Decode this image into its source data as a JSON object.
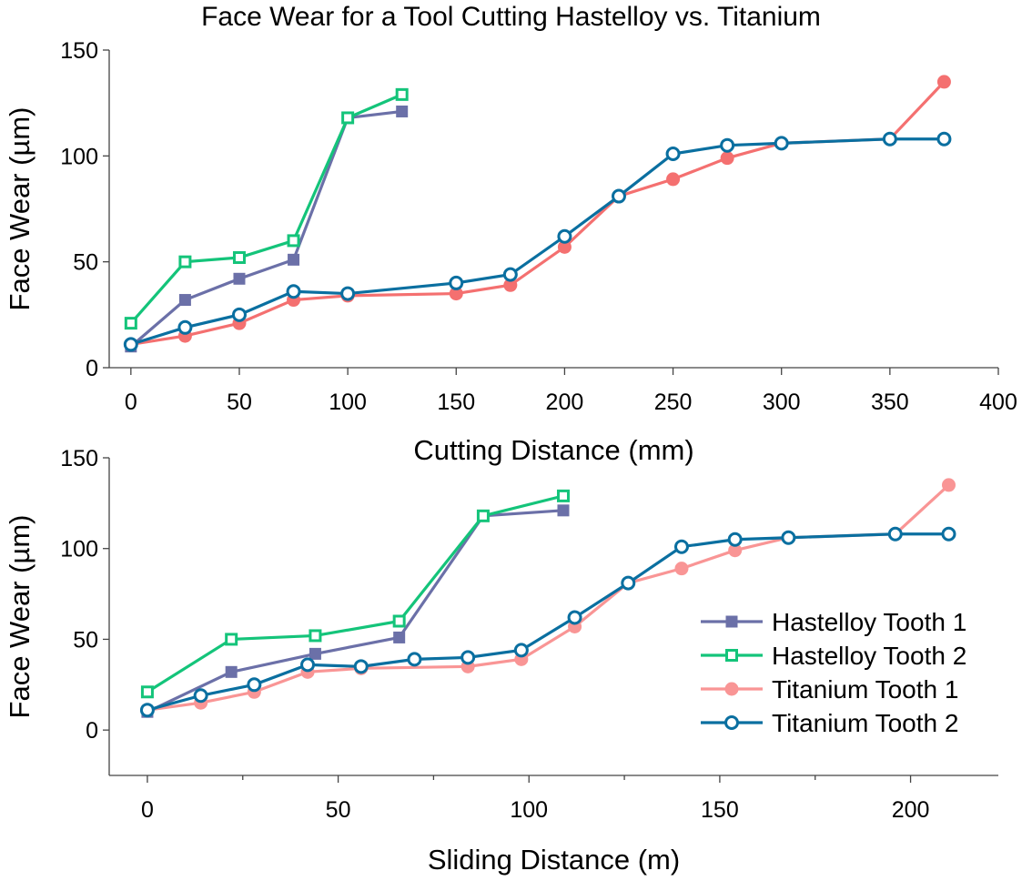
{
  "title": "Face Wear for a Tool Cutting Hastelloy vs. Titanium",
  "colors": {
    "hastelloy_tooth_1": "#6b70a8",
    "hastelloy_tooth_2": "#14c47a",
    "titanium_tooth_1_top": "#f47070",
    "titanium_tooth_1_bottom": "#f99595",
    "titanium_tooth_2": "#0a6fa0"
  },
  "chart_data": [
    {
      "type": "line",
      "xlabel": "Cutting Distance (mm)",
      "ylabel": "Face Wear (µm)",
      "xlim": [
        -10,
        400
      ],
      "ylim": [
        0,
        150
      ],
      "xticks": [
        0,
        50,
        100,
        150,
        200,
        250,
        300,
        350,
        400
      ],
      "yticks": [
        0,
        50,
        100,
        150
      ],
      "grid": false,
      "series": [
        {
          "name": "Hastelloy Tooth 1",
          "marker": "filled-square",
          "x": [
            0,
            25,
            50,
            75,
            100,
            125
          ],
          "y": [
            10,
            32,
            42,
            51,
            118,
            121
          ]
        },
        {
          "name": "Hastelloy Tooth 2",
          "marker": "open-square",
          "x": [
            0,
            25,
            50,
            75,
            100,
            125
          ],
          "y": [
            21,
            50,
            52,
            60,
            118,
            129
          ]
        },
        {
          "name": "Titanium Tooth 1",
          "marker": "filled-circle",
          "x": [
            0,
            25,
            50,
            75,
            100,
            150,
            175,
            200,
            225,
            250,
            275,
            300,
            350,
            375
          ],
          "y": [
            11,
            15,
            21,
            32,
            34,
            35,
            39,
            57,
            81,
            89,
            99,
            106,
            108,
            135
          ]
        },
        {
          "name": "Titanium Tooth 2",
          "marker": "open-circle",
          "x": [
            0,
            25,
            50,
            75,
            100,
            150,
            175,
            200,
            225,
            250,
            275,
            300,
            350,
            375
          ],
          "y": [
            11,
            19,
            25,
            36,
            35,
            40,
            44,
            62,
            81,
            101,
            105,
            106,
            108,
            108
          ]
        }
      ]
    },
    {
      "type": "line",
      "xlabel": "Sliding Distance (m)",
      "ylabel": "Face Wear (µm)",
      "xlim": [
        -10,
        223
      ],
      "ylim": [
        -25,
        150
      ],
      "xticks": [
        0,
        50,
        100,
        150,
        200
      ],
      "yticks": [
        0,
        50,
        100,
        150
      ],
      "grid": false,
      "legend": "center-right",
      "series": [
        {
          "name": "Hastelloy Tooth 1",
          "marker": "filled-square",
          "x": [
            0,
            22,
            44,
            66,
            88,
            109
          ],
          "y": [
            10,
            32,
            42,
            51,
            118,
            121
          ]
        },
        {
          "name": "Hastelloy Tooth 2",
          "marker": "open-square",
          "x": [
            0,
            22,
            44,
            66,
            88,
            109
          ],
          "y": [
            21,
            50,
            52,
            60,
            118,
            129
          ]
        },
        {
          "name": "Titanium Tooth 1",
          "marker": "filled-circle",
          "x": [
            0,
            14,
            28,
            42,
            56,
            84,
            98,
            112,
            126,
            140,
            154,
            168,
            196,
            210
          ],
          "y": [
            11,
            15,
            21,
            32,
            34,
            35,
            39,
            57,
            81,
            89,
            99,
            106,
            108,
            135
          ]
        },
        {
          "name": "Titanium Tooth 2",
          "marker": "open-circle",
          "x": [
            0,
            14,
            28,
            42,
            56,
            70,
            84,
            98,
            112,
            126,
            140,
            154,
            168,
            196,
            210
          ],
          "y": [
            11,
            19,
            25,
            36,
            35,
            39,
            40,
            44,
            62,
            81,
            101,
            105,
            106,
            108,
            108
          ]
        }
      ]
    }
  ]
}
